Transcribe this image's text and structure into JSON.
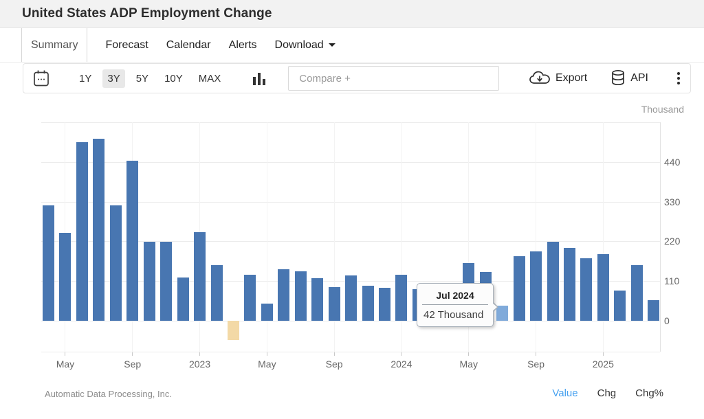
{
  "header": {
    "title": "United States ADP Employment Change"
  },
  "tabs": [
    {
      "label": "Summary",
      "active": true
    },
    {
      "label": "Forecast",
      "active": false
    },
    {
      "label": "Calendar",
      "active": false
    },
    {
      "label": "Alerts",
      "active": false
    },
    {
      "label": "Download",
      "active": false,
      "caret": true
    }
  ],
  "toolbar": {
    "ranges": [
      "1Y",
      "3Y",
      "5Y",
      "10Y",
      "MAX"
    ],
    "active_range": "3Y",
    "compare_placeholder": "Compare +",
    "export_label": "Export",
    "api_label": "API"
  },
  "chart_data": {
    "type": "bar",
    "title": "United States ADP Employment Change",
    "unit_label": "Thousand",
    "legend_position": "none",
    "grid": true,
    "y_axis": {
      "ticks": [
        0,
        110,
        220,
        330,
        440
      ],
      "max": 550,
      "min_visible": -77
    },
    "x_tick_labels": [
      {
        "index": 1,
        "label": "May"
      },
      {
        "index": 5,
        "label": "Sep"
      },
      {
        "index": 9,
        "label": "2023"
      },
      {
        "index": 13,
        "label": "May"
      },
      {
        "index": 17,
        "label": "Sep"
      },
      {
        "index": 21,
        "label": "2024"
      },
      {
        "index": 25,
        "label": "May"
      },
      {
        "index": 29,
        "label": "Sep"
      },
      {
        "index": 33,
        "label": "2025"
      }
    ],
    "months": [
      {
        "label": "Apr 2022",
        "value": 320
      },
      {
        "label": "May 2022",
        "value": 243
      },
      {
        "label": "Jun 2022",
        "value": 494
      },
      {
        "label": "Jul 2022",
        "value": 505
      },
      {
        "label": "Aug 2022",
        "value": 320
      },
      {
        "label": "Sep 2022",
        "value": 443
      },
      {
        "label": "Oct 2022",
        "value": 218
      },
      {
        "label": "Nov 2022",
        "value": 219
      },
      {
        "label": "Dec 2022",
        "value": 119
      },
      {
        "label": "Jan 2023",
        "value": 245
      },
      {
        "label": "Feb 2023",
        "value": 154
      },
      {
        "label": "Mar 2023",
        "value": -54
      },
      {
        "label": "Apr 2023",
        "value": 127
      },
      {
        "label": "May 2023",
        "value": 48
      },
      {
        "label": "Jun 2023",
        "value": 143
      },
      {
        "label": "Jul 2023",
        "value": 137
      },
      {
        "label": "Aug 2023",
        "value": 118
      },
      {
        "label": "Sep 2023",
        "value": 93
      },
      {
        "label": "Oct 2023",
        "value": 126
      },
      {
        "label": "Nov 2023",
        "value": 97
      },
      {
        "label": "Dec 2023",
        "value": 91
      },
      {
        "label": "Jan 2024",
        "value": 127
      },
      {
        "label": "Feb 2024",
        "value": 88
      },
      {
        "label": "Mar 2024",
        "value": 85,
        "hidden_behind_tooltip": true
      },
      {
        "label": "Apr 2024",
        "value": 96,
        "hidden_behind_tooltip": true
      },
      {
        "label": "May 2024",
        "value": 160
      },
      {
        "label": "Jun 2024",
        "value": 135
      },
      {
        "label": "Jul 2024",
        "value": 42,
        "highlight": true
      },
      {
        "label": "Aug 2024",
        "value": 178
      },
      {
        "label": "Sep 2024",
        "value": 193
      },
      {
        "label": "Oct 2024",
        "value": 218
      },
      {
        "label": "Nov 2024",
        "value": 202
      },
      {
        "label": "Dec 2024",
        "value": 173
      },
      {
        "label": "Jan 2025",
        "value": 185
      },
      {
        "label": "Feb 2025",
        "value": 83
      },
      {
        "label": "Mar 2025",
        "value": 154
      },
      {
        "label": "Apr 2025",
        "value": 58
      }
    ],
    "colors": {
      "bar": "#4876b1",
      "bar_highlight": "#80aada",
      "bar_negative": "#f3d9a6"
    },
    "tooltip": {
      "title": "Jul 2024",
      "value_label": "42 Thousand"
    }
  },
  "footer": {
    "source": "Automatic Data Processing, Inc.",
    "links": [
      "Value",
      "Chg",
      "Chg%"
    ],
    "active_link": "Value"
  }
}
